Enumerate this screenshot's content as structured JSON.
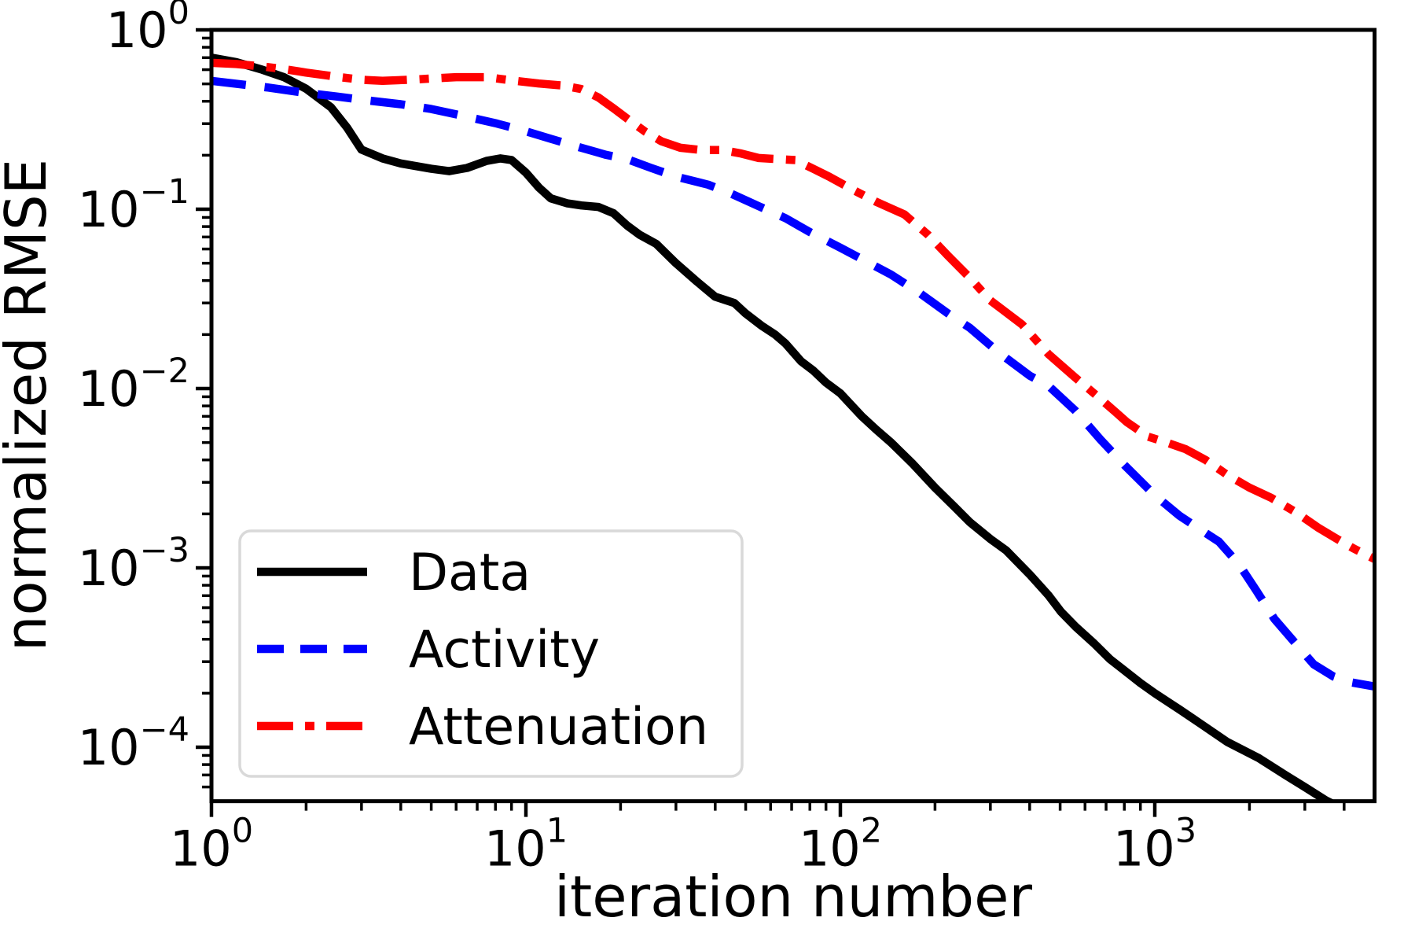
{
  "figure": {
    "background": "#ffffff"
  },
  "chart_data": {
    "type": "line",
    "title": "",
    "xlabel": "iteration number",
    "ylabel": "normalized RMSE",
    "xscale": "log",
    "yscale": "log",
    "xlim": [
      1,
      5000
    ],
    "ylim": [
      5e-05,
      1.0
    ],
    "grid": false,
    "x_ticks": {
      "major_values": [
        1,
        10,
        100,
        1000
      ],
      "major_labels": [
        "10^0",
        "10^1",
        "10^2",
        "10^3"
      ]
    },
    "y_ticks": {
      "major_values": [
        1,
        0.1,
        0.01,
        0.001,
        0.0001
      ],
      "major_labels": [
        "10^0",
        "10^-1",
        "10^-2",
        "10^-3",
        "10^-4"
      ]
    },
    "legend": {
      "position": "lower left",
      "border_color": "#d9d9d9",
      "background": "#ffffff"
    },
    "series": [
      {
        "name": "Data",
        "color": "#000000",
        "style": "solid",
        "points": [
          [
            1,
            0.7
          ],
          [
            1.2,
            0.66
          ],
          [
            1.45,
            0.6
          ],
          [
            1.7,
            0.545
          ],
          [
            2,
            0.47
          ],
          [
            2.4,
            0.37
          ],
          [
            2.7,
            0.285
          ],
          [
            3,
            0.215
          ],
          [
            3.5,
            0.192
          ],
          [
            4,
            0.18
          ],
          [
            5,
            0.168
          ],
          [
            5.7,
            0.163
          ],
          [
            6.5,
            0.17
          ],
          [
            7.5,
            0.186
          ],
          [
            8.3,
            0.192
          ],
          [
            9,
            0.188
          ],
          [
            10,
            0.16
          ],
          [
            11,
            0.132
          ],
          [
            12,
            0.115
          ],
          [
            13.5,
            0.108
          ],
          [
            15,
            0.105
          ],
          [
            17,
            0.103
          ],
          [
            19,
            0.095
          ],
          [
            21,
            0.081
          ],
          [
            23,
            0.072
          ],
          [
            26,
            0.064
          ],
          [
            30,
            0.05
          ],
          [
            35,
            0.0395
          ],
          [
            40,
            0.0325
          ],
          [
            46,
            0.03
          ],
          [
            50,
            0.0262
          ],
          [
            56,
            0.0225
          ],
          [
            62,
            0.02
          ],
          [
            67,
            0.0178
          ],
          [
            75,
            0.0142
          ],
          [
            82,
            0.0126
          ],
          [
            90,
            0.0108
          ],
          [
            100,
            0.0094
          ],
          [
            117,
            0.007
          ],
          [
            130,
            0.0059
          ],
          [
            145,
            0.005
          ],
          [
            170,
            0.0038
          ],
          [
            200,
            0.0028
          ],
          [
            230,
            0.0022
          ],
          [
            258,
            0.0018
          ],
          [
            300,
            0.00145
          ],
          [
            337,
            0.00125
          ],
          [
            400,
            0.00092
          ],
          [
            460,
            0.0007
          ],
          [
            503,
            0.00057
          ],
          [
            560,
            0.00047
          ],
          [
            640,
            0.00038
          ],
          [
            720,
            0.00031
          ],
          [
            790,
            0.000273
          ],
          [
            900,
            0.000228
          ],
          [
            1000,
            0.0002
          ],
          [
            1200,
            0.000162
          ],
          [
            1400,
            0.000135
          ],
          [
            1700,
            0.000107
          ],
          [
            2140,
            8.7e-05
          ],
          [
            2600,
            7e-05
          ],
          [
            3000,
            6e-05
          ],
          [
            3500,
            5.05e-05
          ],
          [
            4000,
            4.5e-05
          ]
        ]
      },
      {
        "name": "Activity",
        "color": "#0000ff",
        "style": "dashed",
        "points": [
          [
            1,
            0.52
          ],
          [
            1.5,
            0.478
          ],
          [
            2,
            0.445
          ],
          [
            2.5,
            0.425
          ],
          [
            3,
            0.408
          ],
          [
            4,
            0.385
          ],
          [
            5,
            0.362
          ],
          [
            6,
            0.338
          ],
          [
            7,
            0.318
          ],
          [
            8,
            0.302
          ],
          [
            10,
            0.272
          ],
          [
            12,
            0.247
          ],
          [
            15,
            0.22
          ],
          [
            18,
            0.201
          ],
          [
            21,
            0.19
          ],
          [
            25,
            0.17
          ],
          [
            30,
            0.152
          ],
          [
            38,
            0.137
          ],
          [
            45,
            0.122
          ],
          [
            55,
            0.104
          ],
          [
            67,
            0.089
          ],
          [
            80,
            0.0745
          ],
          [
            100,
            0.061
          ],
          [
            120,
            0.0515
          ],
          [
            145,
            0.0432
          ],
          [
            180,
            0.0338
          ],
          [
            220,
            0.0262
          ],
          [
            258,
            0.0218
          ],
          [
            320,
            0.0158
          ],
          [
            400,
            0.0118
          ],
          [
            458,
            0.0104
          ],
          [
            560,
            0.0075
          ],
          [
            672,
            0.0052
          ],
          [
            800,
            0.00375
          ],
          [
            1000,
            0.00254
          ],
          [
            1200,
            0.00195
          ],
          [
            1400,
            0.00163
          ],
          [
            1600,
            0.0014
          ],
          [
            1850,
            0.00105
          ],
          [
            2100,
            0.00075
          ],
          [
            2400,
            0.00052
          ],
          [
            2800,
            0.00038
          ],
          [
            3200,
            0.00029
          ],
          [
            3700,
            0.000248
          ],
          [
            4200,
            0.00023
          ],
          [
            5000,
            0.000218
          ]
        ]
      },
      {
        "name": "Attenuation",
        "color": "#ff0000",
        "style": "dashdot",
        "points": [
          [
            1,
            0.655
          ],
          [
            1.2,
            0.645
          ],
          [
            1.45,
            0.625
          ],
          [
            1.7,
            0.605
          ],
          [
            2,
            0.578
          ],
          [
            2.5,
            0.548
          ],
          [
            3,
            0.527
          ],
          [
            3.5,
            0.52
          ],
          [
            4.5,
            0.53
          ],
          [
            6,
            0.545
          ],
          [
            7.5,
            0.545
          ],
          [
            9,
            0.523
          ],
          [
            11,
            0.502
          ],
          [
            13,
            0.49
          ],
          [
            15,
            0.468
          ],
          [
            17,
            0.42
          ],
          [
            19,
            0.365
          ],
          [
            21,
            0.32
          ],
          [
            24,
            0.27
          ],
          [
            27,
            0.239
          ],
          [
            31,
            0.22
          ],
          [
            36,
            0.214
          ],
          [
            42,
            0.214
          ],
          [
            48,
            0.205
          ],
          [
            55,
            0.193
          ],
          [
            64,
            0.19
          ],
          [
            72,
            0.188
          ],
          [
            82,
            0.168
          ],
          [
            92,
            0.152
          ],
          [
            110,
            0.128
          ],
          [
            130,
            0.11
          ],
          [
            160,
            0.0935
          ],
          [
            190,
            0.072
          ],
          [
            220,
            0.055
          ],
          [
            258,
            0.0415
          ],
          [
            300,
            0.031
          ],
          [
            378,
            0.0228
          ],
          [
            460,
            0.0155
          ],
          [
            556,
            0.0116
          ],
          [
            650,
            0.0092
          ],
          [
            750,
            0.0074
          ],
          [
            815,
            0.0065
          ],
          [
            950,
            0.0054
          ],
          [
            1090,
            0.005
          ],
          [
            1250,
            0.0046
          ],
          [
            1450,
            0.004
          ],
          [
            1700,
            0.0033
          ],
          [
            2000,
            0.0028
          ],
          [
            2344,
            0.00246
          ],
          [
            2800,
            0.00205
          ],
          [
            3300,
            0.00168
          ],
          [
            3800,
            0.00145
          ],
          [
            4300,
            0.00128
          ],
          [
            5000,
            0.00112
          ]
        ]
      }
    ]
  }
}
